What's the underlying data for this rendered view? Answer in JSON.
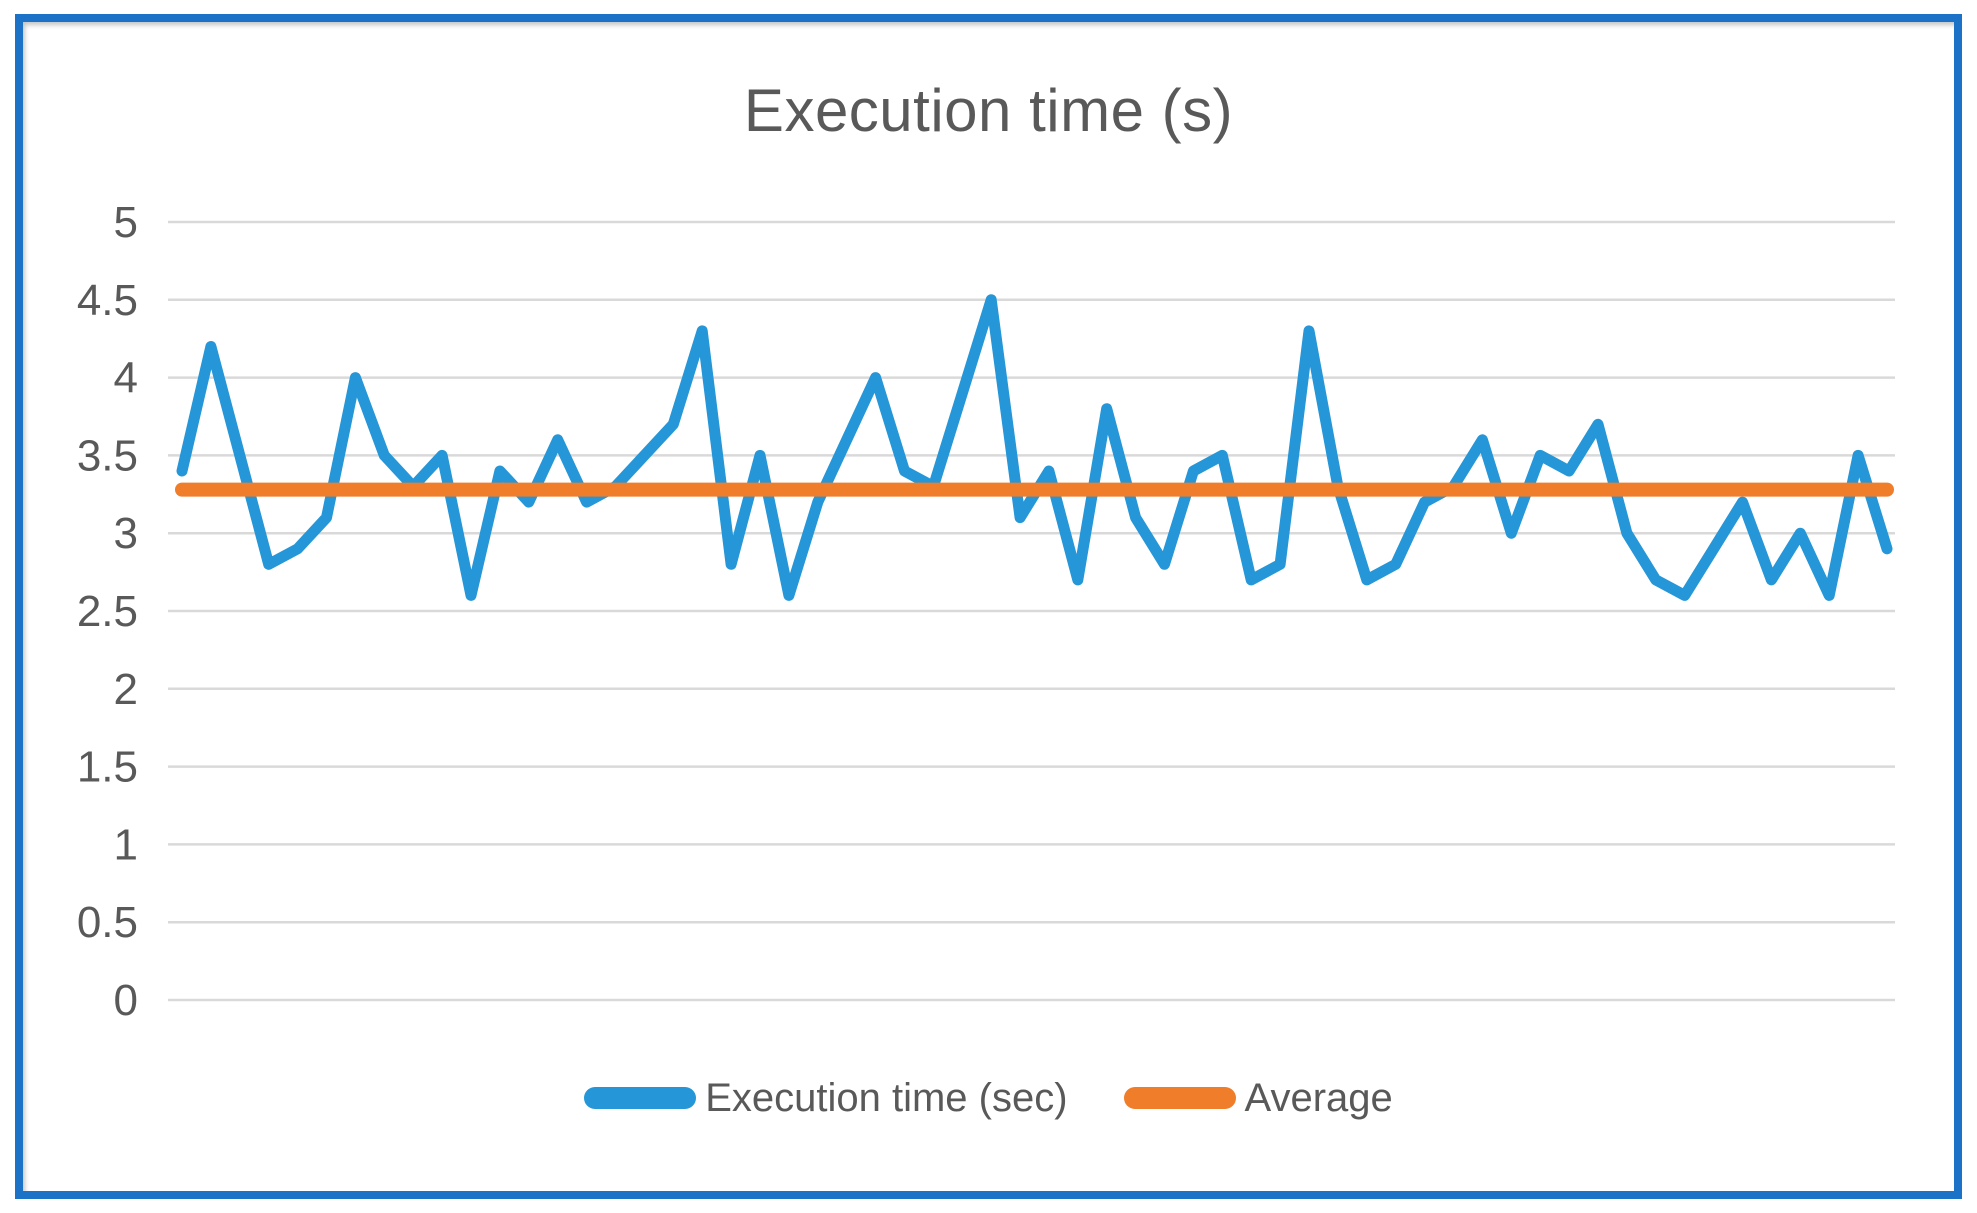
{
  "frame": {
    "border_color": "#1C72C6"
  },
  "chart_data": {
    "type": "line",
    "title": "Execution time (s)",
    "xlabel": "",
    "ylabel": "",
    "x_count": 60,
    "x_axis_labels_visible": false,
    "ylim": [
      0,
      5
    ],
    "y_ticks": [
      5,
      4.5,
      4,
      3.5,
      3,
      2.5,
      2,
      1.5,
      1,
      0.5,
      0
    ],
    "y_tick_labels": [
      "5",
      "4.5",
      "4",
      "3.5",
      "3",
      "2.5",
      "2",
      "1.5",
      "1",
      "0.5",
      "0"
    ],
    "grid": true,
    "legend_position": "bottom",
    "series": [
      {
        "name": "Execution time (sec)",
        "type": "line",
        "color": "#2596D7",
        "values": [
          3.4,
          4.2,
          3.5,
          2.8,
          2.9,
          3.1,
          4.0,
          3.5,
          3.3,
          3.5,
          2.6,
          3.4,
          3.2,
          3.6,
          3.2,
          3.3,
          3.5,
          3.7,
          4.3,
          2.8,
          3.5,
          2.6,
          3.2,
          3.6,
          4.0,
          3.4,
          3.3,
          3.9,
          4.5,
          3.1,
          3.4,
          2.7,
          3.8,
          3.1,
          2.8,
          3.4,
          3.5,
          2.7,
          2.8,
          4.3,
          3.3,
          2.7,
          2.8,
          3.2,
          3.3,
          3.6,
          3.0,
          3.5,
          3.4,
          3.7,
          3.0,
          2.7,
          2.6,
          2.9,
          3.2,
          2.7,
          3.0,
          2.6,
          3.5,
          2.9
        ]
      },
      {
        "name": "Average",
        "type": "line",
        "color": "#EF7D29",
        "value": 3.28
      }
    ],
    "colors": {
      "grid": "#D9D9D9",
      "text": "#595959",
      "title": "#595959"
    }
  }
}
